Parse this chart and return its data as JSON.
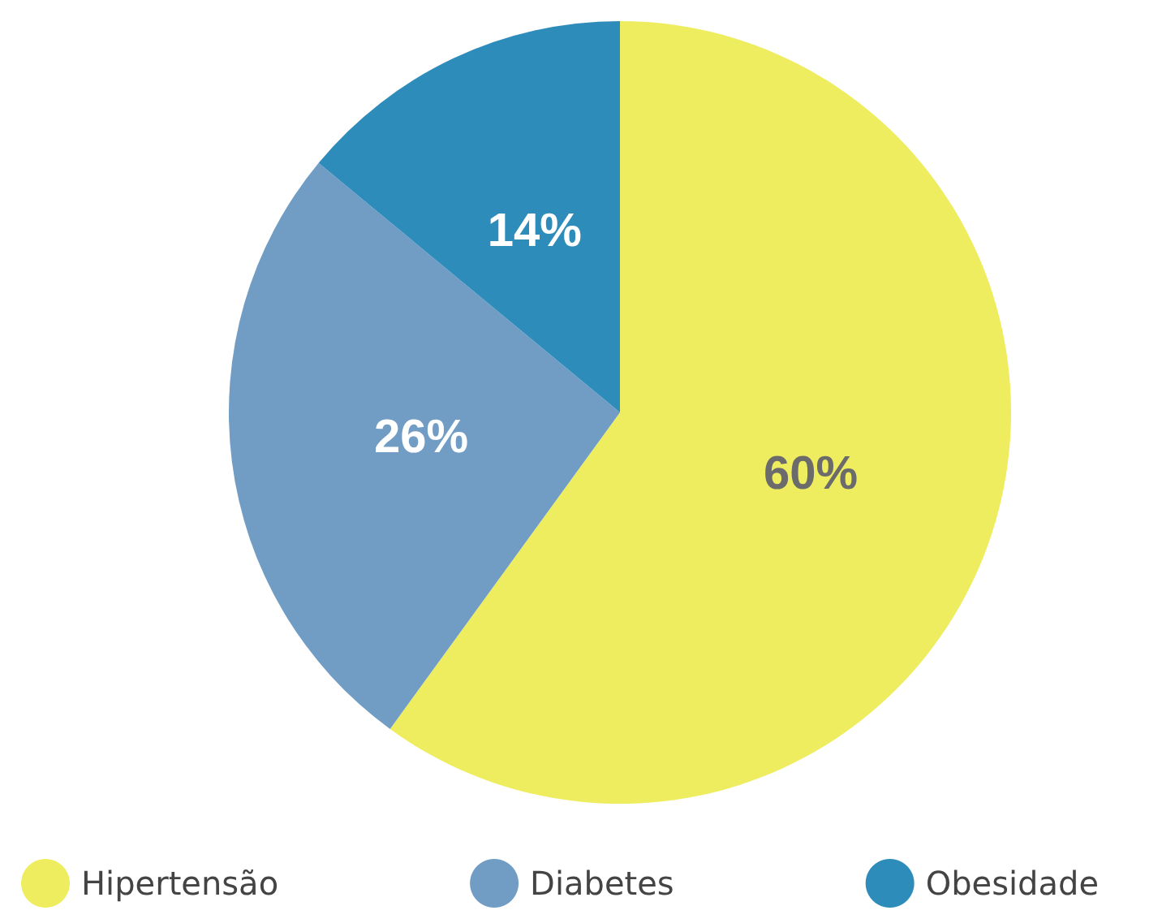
{
  "chart_data": {
    "type": "pie",
    "categories": [
      "Hipertensão",
      "Diabetes",
      "Obesidade"
    ],
    "values": [
      60,
      26,
      14
    ],
    "colors": [
      "#eeed60",
      "#719dc5",
      "#2e8cbb"
    ],
    "value_labels": [
      "60%",
      "26%",
      "14%"
    ],
    "legend": "bottom"
  }
}
